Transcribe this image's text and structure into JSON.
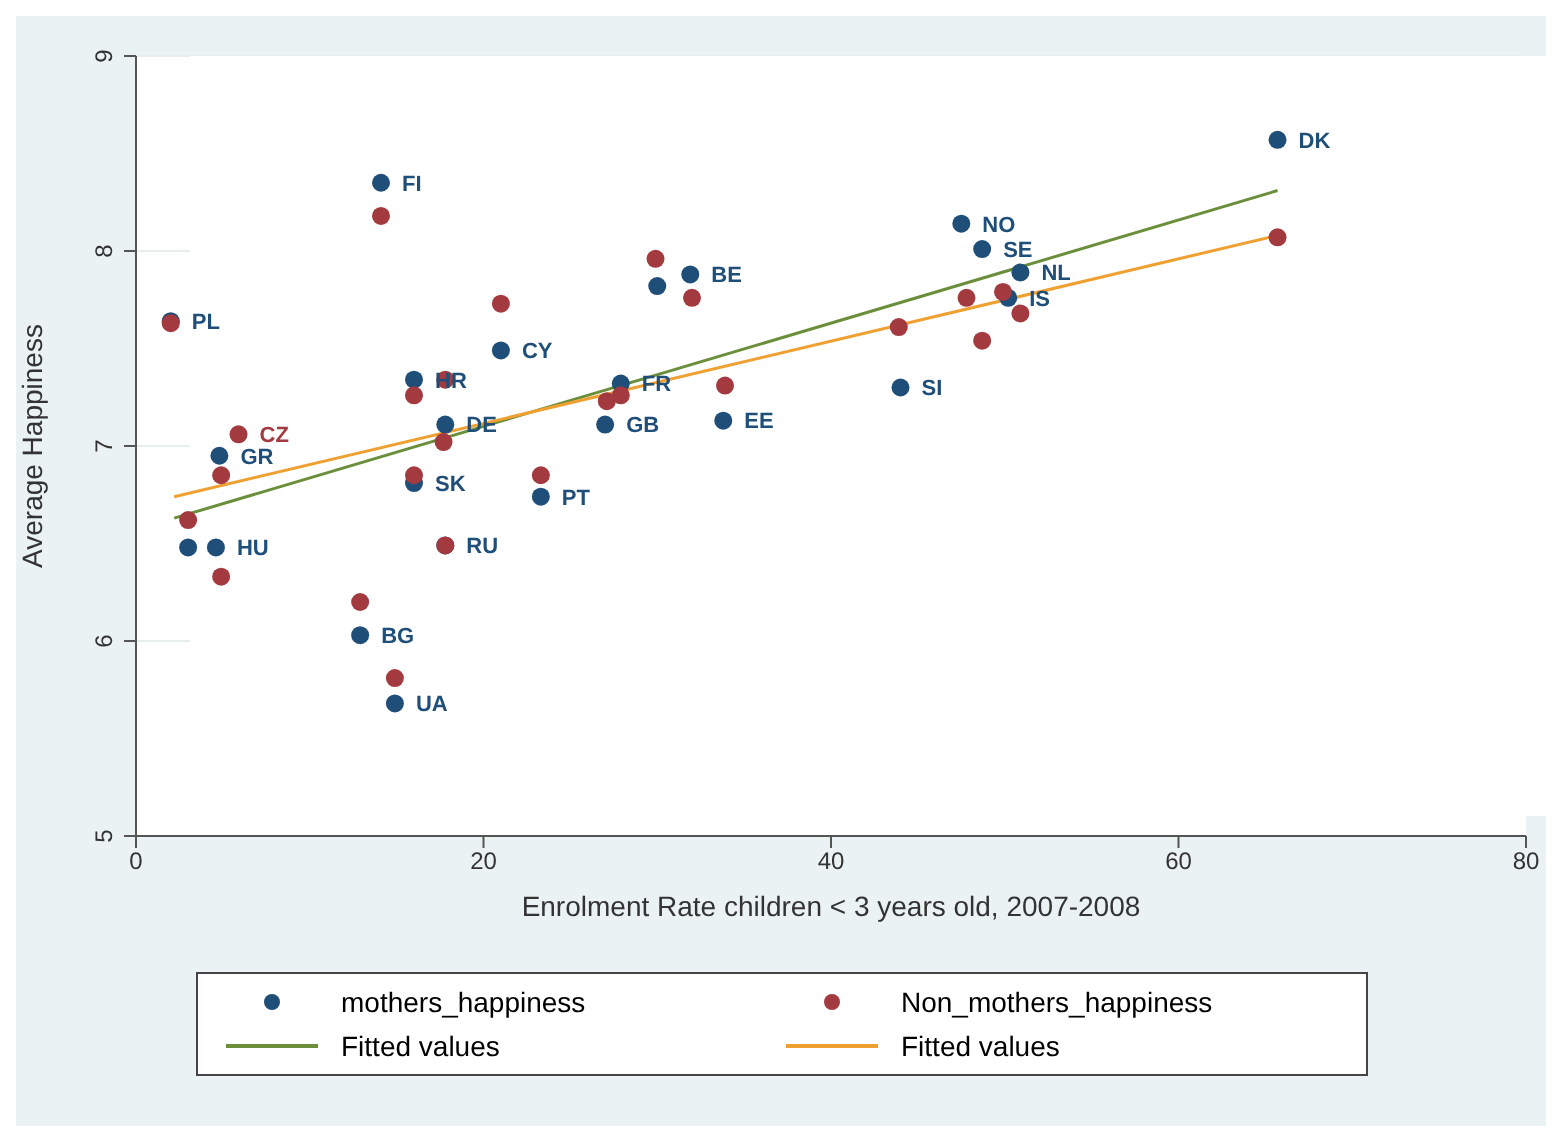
{
  "chart_data": {
    "type": "scatter",
    "xlabel": "Enrolment Rate children < 3 years old, 2007-2008",
    "ylabel": "Average Happiness",
    "xlim": [
      0,
      80
    ],
    "xticks": [
      0,
      20,
      40,
      60,
      80
    ],
    "ylim": [
      5,
      9
    ],
    "yticks": [
      5,
      6,
      7,
      8,
      9
    ],
    "grid": "y",
    "legend": "bottom",
    "marker": "circle",
    "series": [
      {
        "name": "mothers_happiness",
        "color": "#1f4e79",
        "x": [
          65.7,
          47.5,
          48.7,
          50.9,
          50.2,
          14.1,
          31.9,
          30,
          2,
          21,
          16,
          17.8,
          27.9,
          27,
          33.8,
          44,
          23.3,
          16,
          4.8,
          3,
          4.6,
          17.8,
          12.9,
          14.9
        ],
        "values": [
          8.57,
          8.14,
          8.01,
          7.89,
          7.76,
          8.35,
          7.88,
          7.82,
          7.64,
          7.49,
          7.34,
          7.11,
          7.32,
          7.11,
          7.13,
          7.3,
          6.74,
          6.81,
          6.95,
          6.48,
          6.48,
          6.49,
          6.03,
          5.68
        ],
        "value_labels": [
          "DK",
          "NO",
          "SE",
          "NL",
          "IS",
          "FI",
          "BE",
          null,
          "PL",
          "CY",
          "HR",
          "DE",
          "FR",
          "GB",
          "EE",
          "SI",
          "PT",
          "SK",
          "GR",
          null,
          "HU",
          "RU",
          "BG",
          "UA"
        ]
      },
      {
        "name": "Non_mothers_happiness",
        "color": "#a33a3f",
        "x": [
          65.7,
          2,
          14.1,
          21,
          29.9,
          32,
          17.8,
          16,
          17.7,
          27.1,
          27.9,
          33.9,
          23.3,
          16,
          5.9,
          4.9,
          3,
          4.9,
          17.8,
          12.9,
          14.9,
          43.9,
          47.8,
          48.7,
          49.9,
          50.9
        ],
        "values": [
          8.07,
          7.63,
          8.18,
          7.73,
          7.96,
          7.76,
          7.34,
          7.26,
          7.02,
          7.23,
          7.26,
          7.31,
          6.85,
          6.85,
          7.06,
          6.85,
          6.62,
          6.33,
          6.49,
          6.2,
          5.81,
          7.61,
          7.76,
          7.54,
          7.79,
          7.68
        ],
        "value_labels": [
          null,
          null,
          null,
          null,
          null,
          null,
          null,
          null,
          null,
          null,
          null,
          null,
          null,
          null,
          "CZ",
          null,
          null,
          null,
          null,
          null,
          null,
          null,
          null,
          null,
          null,
          null
        ]
      },
      {
        "name": "Fitted values",
        "type": "line",
        "marker": "none",
        "color": "#6b8e3a",
        "x": [
          2.2,
          65.7
        ],
        "values": [
          6.63,
          8.31
        ]
      },
      {
        "name": "Fitted values",
        "type": "line",
        "marker": "none",
        "color": "#f0a030",
        "x": [
          2.2,
          65.7
        ],
        "values": [
          6.74,
          8.08
        ]
      }
    ]
  }
}
